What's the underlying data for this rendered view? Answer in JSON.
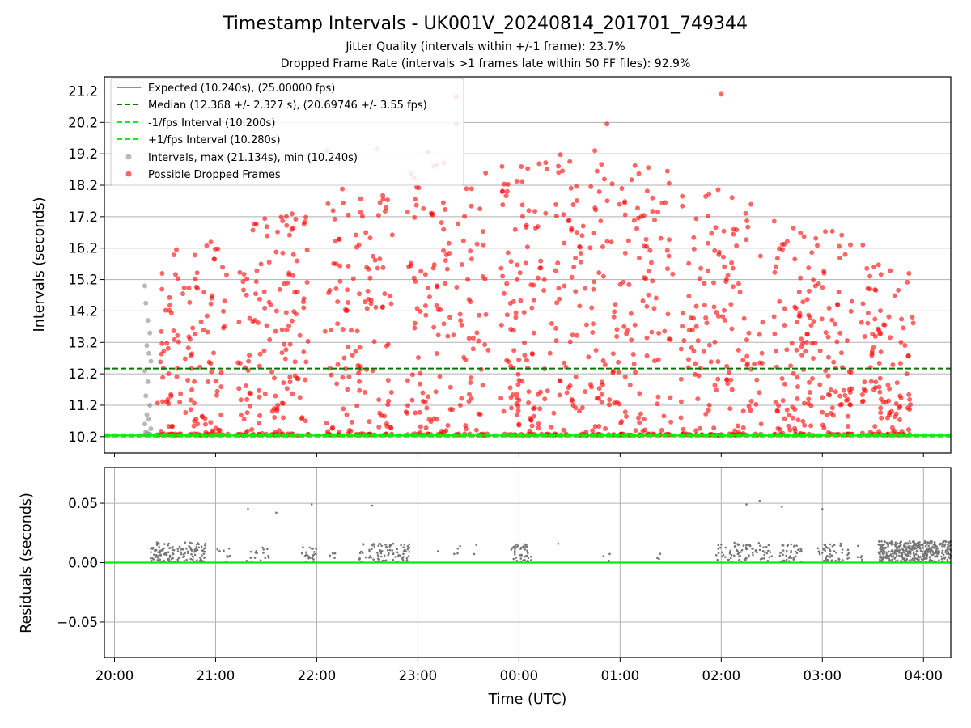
{
  "chart_data": [
    {
      "type": "scatter",
      "title": "Timestamp Intervals - UK001V_20240814_201701_749344",
      "subtitle_lines": [
        "Jitter Quality (intervals within +/-1 frame): 23.7%",
        "Dropped Frame Rate (intervals >1 frames late within 50 FF files): 92.9%"
      ],
      "xlabel": "",
      "ylabel": "Intervals (seconds)",
      "x_unit": "hours after 20:00 UTC on 2024-08-14",
      "xlim": [
        -0.1,
        8.27
      ],
      "ylim": [
        9.68,
        21.65
      ],
      "yticks": [
        10.2,
        11.2,
        12.2,
        13.2,
        14.2,
        15.2,
        16.2,
        17.2,
        18.2,
        19.2,
        20.2,
        21.2
      ],
      "ytick_labels": [
        "10.2",
        "11.2",
        "12.2",
        "13.2",
        "14.2",
        "15.2",
        "16.2",
        "17.2",
        "18.2",
        "19.2",
        "20.2",
        "21.2"
      ],
      "grid": true,
      "legend_position": "upper-left",
      "lines": [
        {
          "name": "Expected (10.240s), (25.00000 fps)",
          "y": 10.24,
          "style": "solid",
          "color": "#00ee00"
        },
        {
          "name": "Median (12.368 +/- 2.327 s), (20.69746 +/- 3.55 fps)",
          "y": 12.368,
          "style": "dashed",
          "color": "#007700"
        },
        {
          "name": "-1/fps Interval (10.200s)",
          "y": 10.2,
          "style": "dashed",
          "color": "#11ee11"
        },
        {
          "name": "+1/fps Interval (10.280s)",
          "y": 10.28,
          "style": "dashed",
          "color": "#11ee11"
        }
      ],
      "series": [
        {
          "name": "Intervals, max (21.134s), min (10.240s)",
          "color": "#888888",
          "points": [
            [
              0.3,
              15.0
            ],
            [
              0.31,
              14.45
            ],
            [
              0.33,
              13.9
            ],
            [
              0.35,
              13.5
            ],
            [
              0.32,
              13.1
            ],
            [
              0.34,
              12.85
            ],
            [
              0.36,
              12.6
            ],
            [
              0.3,
              12.3
            ],
            [
              0.33,
              11.95
            ],
            [
              0.31,
              11.5
            ],
            [
              0.35,
              11.2
            ],
            [
              0.32,
              10.9
            ],
            [
              0.34,
              10.75
            ],
            [
              0.3,
              10.6
            ],
            [
              0.36,
              10.45
            ],
            [
              0.31,
              10.35
            ],
            [
              0.33,
              10.3
            ],
            [
              0.35,
              10.28
            ],
            [
              0.3,
              10.26
            ]
          ]
        },
        {
          "name": "Possible Dropped Frames",
          "color": "#ff0000",
          "generator": {
            "description": "dense scatter of intervals between 10.24 s and ~21 s over the observation window with gaps",
            "x_range": [
              0.42,
              7.9
            ],
            "gaps": [
              [
                1.12,
                1.22
              ],
              [
                1.92,
                2.08
              ],
              [
                2.75,
                2.88
              ],
              [
                3.7,
                3.82
              ],
              [
                5.52,
                5.6
              ],
              [
                6.42,
                6.52
              ],
              [
                7.3,
                7.38
              ]
            ],
            "y_range": [
              10.24,
              21.1
            ],
            "count": 1450,
            "baseline_fraction": 0.18,
            "baseline_y": 10.24,
            "seed": 7
          },
          "highlights": [
            [
              3.38,
              21.0
            ],
            [
              3.38,
              20.15
            ],
            [
              6.0,
              21.1
            ],
            [
              4.87,
              20.15
            ],
            [
              4.75,
              19.3
            ],
            [
              3.1,
              19.25
            ],
            [
              2.1,
              19.3
            ],
            [
              2.6,
              19.35
            ]
          ]
        }
      ]
    },
    {
      "type": "scatter",
      "title": "",
      "xlabel": "Time (UTC)",
      "ylabel": "Residuals (seconds)",
      "x_unit": "hours after 20:00 UTC on 2024-08-14",
      "xlim": [
        -0.1,
        8.27
      ],
      "ylim": [
        -0.08,
        0.08
      ],
      "yticks": [
        -0.05,
        0.0,
        0.05
      ],
      "ytick_labels": [
        "−0.05",
        "0.00",
        "0.05"
      ],
      "xticks": [
        0,
        1,
        2,
        3,
        4,
        5,
        6,
        7,
        8
      ],
      "xtick_labels": [
        "20:00",
        "21:00",
        "22:00",
        "23:00",
        "00:00",
        "01:00",
        "02:00",
        "03:00",
        "04:00"
      ],
      "grid": true,
      "lines": [
        {
          "name": "",
          "y": 0.0,
          "style": "solid",
          "color": "#00ee00"
        }
      ],
      "series": [
        {
          "name": "",
          "color": "#777777",
          "clusters": [
            {
              "x_range": [
                0.35,
                0.6
              ],
              "count": 70,
              "y_range": [
                0.0,
                0.017
              ]
            },
            {
              "x_range": [
                0.62,
                0.9
              ],
              "count": 70,
              "y_range": [
                0.0,
                0.017
              ]
            },
            {
              "x_range": [
                1.0,
                1.15
              ],
              "count": 8,
              "y_range": [
                0.0,
                0.012
              ]
            },
            {
              "x_range": [
                1.3,
                1.55
              ],
              "count": 18,
              "y_range": [
                0.0,
                0.013
              ]
            },
            {
              "x_range": [
                1.85,
                2.0
              ],
              "count": 22,
              "y_range": [
                0.0,
                0.013
              ]
            },
            {
              "x_range": [
                2.1,
                2.2
              ],
              "count": 5,
              "y_range": [
                0.0,
                0.01
              ]
            },
            {
              "x_range": [
                2.42,
                2.92
              ],
              "count": 90,
              "y_range": [
                0.0,
                0.016
              ]
            },
            {
              "x_range": [
                3.15,
                3.6
              ],
              "count": 7,
              "y_range": [
                0.004,
                0.015
              ]
            },
            {
              "x_range": [
                3.92,
                4.12
              ],
              "count": 45,
              "y_range": [
                0.0,
                0.016
              ]
            },
            {
              "x_range": [
                4.35,
                4.4
              ],
              "count": 1,
              "y_range": [
                0.015,
                0.017
              ]
            },
            {
              "x_range": [
                4.8,
                4.9
              ],
              "count": 3,
              "y_range": [
                0.0,
                0.008
              ]
            },
            {
              "x_range": [
                5.35,
                5.45
              ],
              "count": 3,
              "y_range": [
                0.0,
                0.008
              ]
            },
            {
              "x_range": [
                5.95,
                6.5
              ],
              "count": 80,
              "y_range": [
                0.0,
                0.017
              ]
            },
            {
              "x_range": [
                6.58,
                6.8
              ],
              "count": 40,
              "y_range": [
                0.0,
                0.016
              ]
            },
            {
              "x_range": [
                6.95,
                7.2
              ],
              "count": 45,
              "y_range": [
                0.0,
                0.016
              ]
            },
            {
              "x_range": [
                7.22,
                7.4
              ],
              "count": 12,
              "y_range": [
                0.0,
                0.015
              ]
            },
            {
              "x_range": [
                7.55,
                8.27
              ],
              "count": 420,
              "y_range": [
                0.0,
                0.018
              ]
            }
          ],
          "outliers": [
            [
              1.32,
              0.045
            ],
            [
              1.6,
              0.042
            ],
            [
              1.95,
              0.049
            ],
            [
              2.55,
              0.048
            ],
            [
              6.25,
              0.049
            ],
            [
              6.38,
              0.052
            ],
            [
              6.6,
              0.047
            ],
            [
              7.0,
              0.045
            ]
          ]
        }
      ]
    }
  ]
}
